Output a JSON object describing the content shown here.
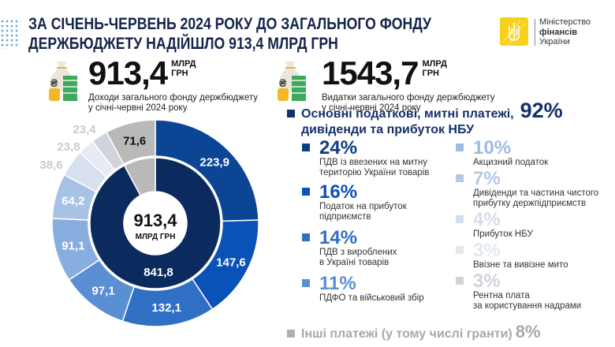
{
  "header": {
    "title_line1": "ЗА СІЧЕНЬ-ЧЕРВЕНЬ 2024 РОКУ ДО ЗАГАЛЬНОГО ФОНДУ",
    "title_line2": "ДЕРЖБЮДЖЕТУ НАДІЙШЛО 913,4 МЛРД ГРН"
  },
  "logo": {
    "line1": "Міністерство",
    "line2": "фінансів",
    "line3": "України",
    "color": "#f7d21c"
  },
  "stats": [
    {
      "value": "913,4",
      "unit1": "МЛРД",
      "unit2": "ГРН",
      "desc1": "Доходи загального фонду держбюджету",
      "desc2": "у січні-червні 2024 року"
    },
    {
      "value": "1543,7",
      "unit1": "МЛРД",
      "unit2": "ГРН",
      "desc1": "Видатки загального фонду держбюджету",
      "desc2": "у січні-червні 2024 року"
    }
  ],
  "chart_data": {
    "type": "donut",
    "center_value": "913,4",
    "center_unit": "МЛРД ГРН",
    "inner": [
      {
        "value": 841.8,
        "label": "841,8",
        "color": "#0b2b5e"
      },
      {
        "value": 71.6,
        "label": "",
        "color": "#b9b9b9"
      }
    ],
    "outer": [
      {
        "value": 223.9,
        "label": "223,9",
        "color": "#0d4595"
      },
      {
        "value": 147.6,
        "label": "147,6",
        "color": "#0a52b8"
      },
      {
        "value": 132.1,
        "label": "132,1",
        "color": "#2f6fc4"
      },
      {
        "value": 97.1,
        "label": "97,1",
        "color": "#5a8fd4"
      },
      {
        "value": 91.1,
        "label": "91,1",
        "color": "#88addf"
      },
      {
        "value": 64.2,
        "label": "64,2",
        "color": "#a8c2e6"
      },
      {
        "value": 38.6,
        "label": "38,6",
        "color": "#d6e0ef"
      },
      {
        "value": 23.8,
        "label": "23,8",
        "color": "#e6ebf2"
      },
      {
        "value": 23.4,
        "label": "23,4",
        "color": "#cfd4da"
      },
      {
        "value": 71.6,
        "label": "71,6",
        "color": "#b9b9b9"
      }
    ]
  },
  "legend": {
    "main_label_line1": "Основні податкові, митні платежі,",
    "main_label_line2": "дивіденди та прибуток НБУ",
    "main_pct": "92%",
    "main_color": "#15306a",
    "items": [
      {
        "pct": "24%",
        "d1": "ПДВ із ввезених на митну",
        "d2": "територію України товарів",
        "color": "#0d3d85"
      },
      {
        "pct": "16%",
        "d1": "Податок на прибуток",
        "d2": "підприємств",
        "color": "#0a52b8"
      },
      {
        "pct": "14%",
        "d1": "ПДВ з вироблених",
        "d2": "в Україні товарів",
        "color": "#2f6fc4"
      },
      {
        "pct": "11%",
        "d1": "ПДФО та військовий збір",
        "d2": "",
        "color": "#5a8fd4"
      },
      {
        "pct": "10%",
        "d1": "Акцизний податок",
        "d2": "",
        "color": "#9dbbe3"
      },
      {
        "pct": "7%",
        "d1": "Дивіденди та частина чистого",
        "d2": "прибутку держпідприємств",
        "color": "#b3c8e6"
      },
      {
        "pct": "4%",
        "d1": "Прибуток НБУ",
        "d2": "",
        "color": "#d3ddec"
      },
      {
        "pct": "3%",
        "d1": "Ввізне та вивізне мито",
        "d2": "",
        "color": "#e3e8ef"
      },
      {
        "pct": "3%",
        "d1": "Рентна плата",
        "d2": "за користування надрами",
        "color": "#cfd3d8"
      }
    ],
    "other_label": "Інші платежі (у тому числі гранти)",
    "other_pct": "8%",
    "other_color": "#b0b0b0"
  }
}
